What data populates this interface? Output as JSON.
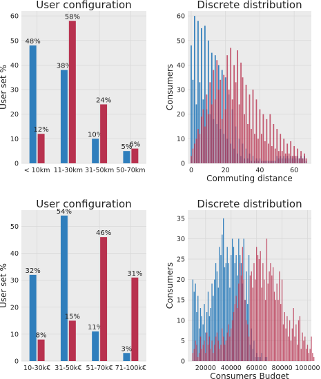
{
  "colors": {
    "blue": "#2f7ebc",
    "red": "#b8324f",
    "bg": "#ebebeb",
    "grid": "#d9d9d9"
  },
  "chart_data": [
    {
      "type": "bar",
      "title": "User configuration",
      "xlabel": "",
      "ylabel": "User set %",
      "categories": [
        "< 10km",
        "11-30km",
        "31-50km",
        "50-70km"
      ],
      "ylim": [
        0,
        62
      ],
      "yticks": [
        0,
        10,
        20,
        30,
        40,
        50,
        60
      ],
      "series": [
        {
          "color": "blue",
          "values": [
            48,
            38,
            10,
            5
          ],
          "labels": [
            "48%",
            "38%",
            "10%",
            "5%"
          ]
        },
        {
          "color": "red",
          "values": [
            12,
            58,
            24,
            6
          ],
          "labels": [
            "12%",
            "58%",
            "24%",
            "6%"
          ]
        }
      ]
    },
    {
      "type": "bar",
      "title": "Discrete distribution",
      "xlabel": "Commuting distance",
      "ylabel": "Consumers",
      "xlim": [
        -2,
        70
      ],
      "ylim": [
        0,
        62
      ],
      "xticks": [
        0,
        20,
        40,
        60
      ],
      "yticks": [
        0,
        10,
        20,
        30,
        40,
        50,
        60
      ],
      "series": [
        {
          "color": "blue",
          "x_start": 0,
          "step": 1,
          "values": [
            48,
            34,
            60,
            24,
            58,
            33,
            55,
            26,
            56,
            22,
            50,
            20,
            45,
            18,
            44,
            16,
            40,
            14,
            38,
            12,
            35,
            10,
            28,
            8,
            22,
            6,
            15,
            4,
            10,
            3,
            8,
            2,
            6,
            2,
            4,
            1,
            3,
            1,
            2,
            1,
            2,
            1,
            1,
            1,
            1,
            1,
            1,
            1,
            1,
            1,
            3,
            2,
            3,
            2,
            3,
            2,
            3,
            2,
            3,
            2,
            3,
            2,
            3,
            2,
            3,
            2,
            3,
            1
          ]
        },
        {
          "color": "red",
          "x_start": 0,
          "step": 1,
          "values": [
            3,
            6,
            8,
            10,
            14,
            12,
            19,
            22,
            15,
            28,
            20,
            33,
            24,
            38,
            26,
            42,
            30,
            34,
            18,
            36,
            22,
            44,
            30,
            47,
            26,
            40,
            33,
            46,
            24,
            41,
            35,
            20,
            32,
            16,
            28,
            14,
            30,
            12,
            26,
            10,
            22,
            12,
            20,
            9,
            18,
            8,
            20,
            7,
            16,
            6,
            14,
            5,
            12,
            5,
            10,
            4,
            8,
            4,
            9,
            3,
            7,
            3,
            6,
            2,
            5,
            2,
            4,
            2
          ]
        }
      ]
    },
    {
      "type": "bar",
      "title": "User configuration",
      "xlabel": "",
      "ylabel": "User set %",
      "categories": [
        "10-30k€",
        "31-50k€",
        "51-70k€",
        "71-100k€"
      ],
      "ylim": [
        0,
        56
      ],
      "yticks": [
        0,
        10,
        20,
        30,
        40,
        50
      ],
      "series": [
        {
          "color": "blue",
          "values": [
            32,
            54,
            11,
            3
          ],
          "labels": [
            "32%",
            "54%",
            "11%",
            "3%"
          ]
        },
        {
          "color": "red",
          "values": [
            8,
            15,
            46,
            31
          ],
          "labels": [
            "8%",
            "15%",
            "46%",
            "31%"
          ]
        }
      ]
    },
    {
      "type": "bar",
      "title": "Discrete distribution",
      "xlabel": "Consumers Budget",
      "ylabel": "Consumers",
      "xlim": [
        6000,
        103000
      ],
      "ylim": [
        0,
        37
      ],
      "xticks": [
        20000,
        40000,
        60000,
        80000,
        100000
      ],
      "yticks": [
        0,
        5,
        10,
        15,
        20,
        25,
        30,
        35
      ],
      "series": [
        {
          "color": "blue",
          "x_start": 10000,
          "step": 1000,
          "values": [
            20,
            17,
            19,
            12,
            16,
            8,
            13,
            11,
            9,
            14,
            7,
            12,
            17,
            11,
            13,
            19,
            16,
            20,
            24,
            22,
            18,
            28,
            26,
            31,
            35,
            23,
            24,
            28,
            24,
            18,
            26,
            30,
            28,
            24,
            26,
            21,
            30,
            26,
            24,
            19,
            30,
            15,
            22,
            14,
            26,
            4,
            8,
            3,
            5,
            1,
            2,
            1,
            1,
            1,
            2,
            0,
            0,
            1,
            1,
            0,
            0
          ]
        },
        {
          "color": "red",
          "x_start": 10000,
          "step": 1000,
          "values": [
            2,
            3,
            5,
            4,
            1,
            2,
            6,
            3,
            4,
            5,
            2,
            7,
            4,
            6,
            3,
            5,
            2,
            4,
            6,
            7,
            5,
            3,
            4,
            8,
            6,
            4,
            5,
            7,
            9,
            6,
            8,
            10,
            12,
            14,
            16,
            13,
            19,
            24,
            21,
            28,
            20,
            15,
            10,
            9,
            6,
            21,
            22,
            18,
            24,
            20,
            28,
            26,
            25,
            27,
            18,
            24,
            20,
            15,
            30,
            19,
            22,
            24,
            21,
            23,
            17,
            15,
            19,
            15,
            22,
            14,
            20,
            9,
            12,
            8,
            11,
            6,
            10,
            5,
            8,
            13,
            6,
            9,
            4,
            10,
            11,
            3,
            7,
            5,
            6,
            3,
            4,
            2,
            3,
            6,
            2,
            1
          ]
        }
      ]
    }
  ]
}
